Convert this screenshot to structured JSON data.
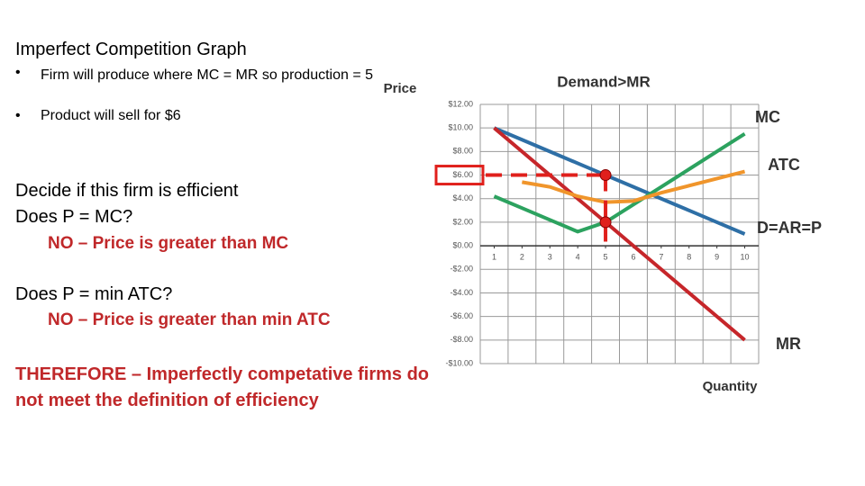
{
  "slide": {
    "title": "Imperfect Competition Graph",
    "bullets": [
      "Firm will produce where MC = MR so production = 5",
      "Product will sell for $6"
    ],
    "lines": [
      "Decide if this firm is efficient",
      "Does P = MC?"
    ],
    "answer1": "NO – Price is greater than MC",
    "question2": "Does P = min ATC?",
    "answer2": "NO – Price is greater than min ATC",
    "conclusion": "THEREFORE – Imperfectly competative firms do not meet the definition of efficiency"
  },
  "chart_data": {
    "type": "line",
    "ylabel": "Price",
    "xlabel": "Quantity",
    "x": [
      1,
      2,
      3,
      4,
      5,
      6,
      7,
      8,
      9,
      10
    ],
    "xlim": [
      0.5,
      10.5
    ],
    "xticks": [
      1,
      2,
      3,
      4,
      5,
      6,
      7,
      8,
      9,
      10
    ],
    "ylim": [
      -10,
      12
    ],
    "yticks": [
      {
        "value": -10,
        "label": "-$10.00"
      },
      {
        "value": -8,
        "label": "-$8.00"
      },
      {
        "value": -6,
        "label": "-$6.00"
      },
      {
        "value": -4,
        "label": "-$4.00"
      },
      {
        "value": -2,
        "label": "-$2.00"
      },
      {
        "value": 0,
        "label": "$0.00"
      },
      {
        "value": 2,
        "label": "$2.00"
      },
      {
        "value": 4,
        "label": "$4.00"
      },
      {
        "value": 6,
        "label": "$6.00"
      },
      {
        "value": 8,
        "label": "$8.00"
      },
      {
        "value": 10,
        "label": "$10.00"
      },
      {
        "value": 12,
        "label": "$12.00"
      }
    ],
    "grid": true,
    "series": [
      {
        "name": "D=AR=P",
        "color": "#2e6fa6",
        "values": [
          10,
          9,
          8,
          7,
          6,
          5,
          4,
          3,
          2,
          1
        ]
      },
      {
        "name": "MR",
        "color": "#c6262a",
        "values": [
          10,
          8,
          6,
          4,
          2,
          0,
          -2,
          -4,
          -6,
          -8
        ]
      },
      {
        "name": "MC",
        "color": "#2ca25f",
        "values": [
          4.2,
          3.2,
          2.2,
          1.2,
          2,
          3.5,
          5,
          6.5,
          8,
          9.5
        ]
      },
      {
        "name": "ATC",
        "color": "#f0952b",
        "values": [
          null,
          5.4,
          5,
          4.2,
          3.7,
          3.8,
          4.5,
          5.1,
          5.7,
          6.3
        ]
      }
    ],
    "annotation": "Demand>MR"
  }
}
